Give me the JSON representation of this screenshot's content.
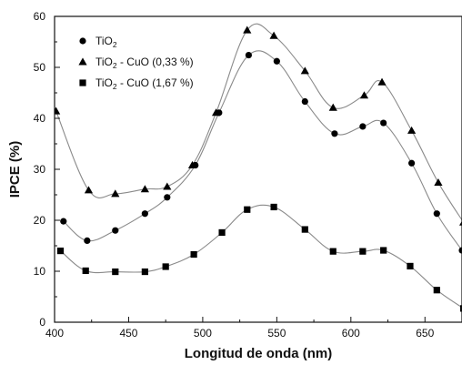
{
  "chart_data": {
    "type": "line",
    "xlabel": "Longitud de onda (nm)",
    "ylabel": "IPCE (%)",
    "xlim": [
      400,
      675
    ],
    "ylim": [
      0,
      60
    ],
    "x_ticks": [
      400,
      450,
      500,
      550,
      600,
      650
    ],
    "y_ticks": [
      0,
      10,
      20,
      30,
      40,
      50,
      60
    ],
    "grid": false,
    "legend_position": "top-left",
    "series": [
      {
        "name": "TiO2",
        "legend_main": "TiO",
        "legend_sub": "2",
        "legend_suffix": "",
        "marker": "circle",
        "x": [
          406,
          422,
          441,
          461,
          476,
          495,
          511,
          531,
          550,
          569,
          589,
          608,
          622,
          641,
          658,
          675
        ],
        "y": [
          19.8,
          16,
          18,
          21.3,
          24.5,
          30.8,
          41.1,
          52.4,
          51.2,
          43.3,
          37,
          38.4,
          39.1,
          31.2,
          21.3,
          14.1
        ]
      },
      {
        "name": "TiO2 - CuO (0,33 %)",
        "legend_main": "TiO",
        "legend_sub": "2",
        "legend_suffix": " - CuO (0,33 %)",
        "marker": "triangle",
        "x": [
          401,
          423,
          441,
          461,
          476,
          493,
          509,
          530,
          548,
          569,
          588,
          609,
          621,
          641,
          659,
          676
        ],
        "y": [
          41.4,
          25.9,
          25.2,
          26.1,
          26.6,
          30.8,
          41.1,
          57.3,
          56.2,
          49.3,
          42.1,
          44.5,
          47.1,
          37.6,
          27.4,
          19.6
        ]
      },
      {
        "name": "TiO2 - CuO (1,67 %)",
        "legend_main": "TiO",
        "legend_sub": "2",
        "legend_suffix": " - CuO (1,67 %)",
        "marker": "square",
        "x": [
          404,
          421,
          441,
          461,
          475,
          494,
          513,
          530,
          548,
          569,
          588,
          608,
          622,
          640,
          658,
          676
        ],
        "y": [
          14,
          10.1,
          9.9,
          9.9,
          10.9,
          13.3,
          17.6,
          22.1,
          22.6,
          18.2,
          13.9,
          13.9,
          14.1,
          11,
          6.3,
          2.7
        ]
      }
    ]
  }
}
